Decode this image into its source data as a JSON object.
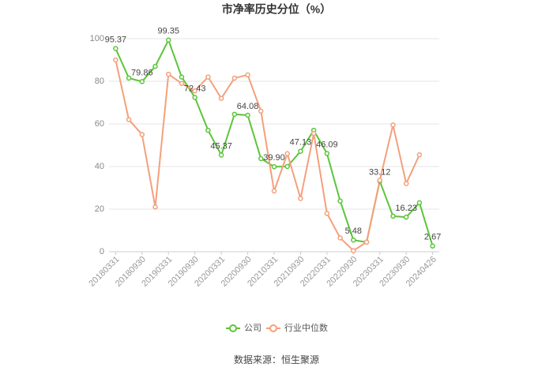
{
  "chart_data": {
    "type": "line",
    "title": "市净率历史分位（%）",
    "source": "数据来源：恒生聚源",
    "categories": [
      "20180331",
      null,
      "20180930",
      null,
      "20190331",
      null,
      "20190930",
      null,
      "20200331",
      null,
      "20200930",
      null,
      "20210331",
      null,
      "20210930",
      null,
      "20220331",
      null,
      "20220930",
      null,
      "20230331",
      null,
      "20230930",
      null,
      "20240426"
    ],
    "series": [
      {
        "name": "公司",
        "color": "#5cc53b",
        "values": [
          95.37,
          81.5,
          79.86,
          87,
          99.35,
          82,
          72.43,
          57,
          45.37,
          64.5,
          64.08,
          43.7,
          39.9,
          40,
          47.13,
          57,
          46.09,
          23.8,
          5.48,
          4.5,
          33.12,
          16.7,
          16.23,
          23,
          2.67
        ],
        "value_labels": [
          "95.37",
          null,
          "79.86",
          null,
          "99.35",
          null,
          "72.43",
          null,
          "45.37",
          null,
          "64.08",
          null,
          "39.90",
          null,
          "47.13",
          null,
          "46.09",
          null,
          "5.48",
          null,
          "33.12",
          null,
          "16.23",
          null,
          "2.67"
        ]
      },
      {
        "name": "行业中位数",
        "color": "#f4a07c",
        "values": [
          90,
          62,
          55,
          21,
          83.3,
          79,
          75.5,
          82,
          72,
          81.5,
          83,
          66,
          28.5,
          46,
          25,
          55.5,
          18,
          6.5,
          0.5,
          4.5,
          33.5,
          59.5,
          32,
          45.5,
          null
        ]
      }
    ],
    "ylim": [
      0,
      100
    ],
    "yticks": [
      0,
      20,
      40,
      60,
      80,
      100
    ],
    "grid": true
  }
}
